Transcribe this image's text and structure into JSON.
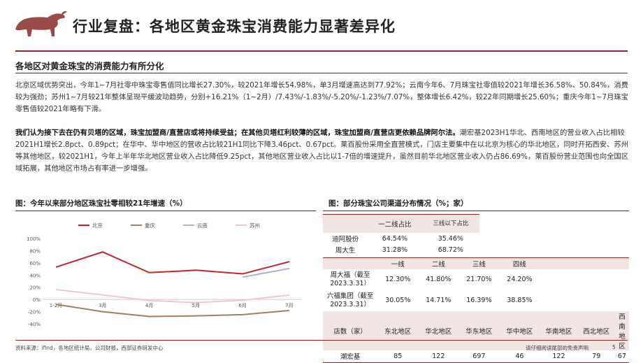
{
  "header": {
    "title": "行业复盘：各地区黄金珠宝消费能力显著差异化",
    "accent_color": "#8b2a2a"
  },
  "section": {
    "subtitle": "各地区对黄金珠宝的消费能力有所分化",
    "paragraph1": "北京区域优势突出，今年1~7月社零中珠宝零售值同比增长27.30%，较2021年增长54.98%，单3月增速高达到77.92%；云南今年6、7月珠宝社零值较2021年增长36.58%、50.84%，消费较为强劲；苏州1~7月较21年整体呈现平缓波动趋势，分别+16.21%（1~2月）/7.43%/-1.83%/-5.20%/-1.23%/7.07%，整体增长6.42%，较22年同期增长25.60%；重庆今年1~7月珠宝零售值较2021年略有下滑。",
    "paragraph2_bold": "我们认为接下去在仍有贝塔的区域，珠宝加盟商/直营店或将持续受益；在其他贝塔红利较薄的区域，珠宝加盟商/直营店更依赖品牌阿尔法。",
    "paragraph2_rest": "潮宏基2023H1华北、西南地区的营业收入占比相较2021H1增长2.8pct、0.89pct；在华中、华中地区的营收占比较21H1同比下降3.46pct、0.67pct。莱百股份采用全直营模式，门店主要集中在以北京为核心的华北地区，同时开拓西安、苏州等其他地区，较2021H1，今年上半年华北地区营业收入占比降低9.25pct，其他地区营业收入占比以1-7倍的增速提升，虽然目前华北地区营业收入仍占86.69%，莱百股份营业范围也向全国区域拓展，其他地区市场占有率进一步增强。"
  },
  "figure1": {
    "title": "图：今年以来部分地区珠宝社零相较21年增速（%）"
  },
  "figure2": {
    "title": "图：部分珠宝公司渠道分布情况（%；家）"
  },
  "chart_data": {
    "type": "line",
    "title": "今年以来部分地区珠宝社零相较21年增速（%）",
    "categories": [
      "1-2月",
      "3月",
      "4月",
      "5月",
      "6月",
      "7月"
    ],
    "ylim": [
      -40,
      100
    ],
    "yticks": [
      "-40%",
      "-20%",
      "0%",
      "20%",
      "40%",
      "60%",
      "80%",
      "100%"
    ],
    "series": [
      {
        "name": "北京",
        "color": "#c0282d",
        "values": [
          53,
          77.92,
          44,
          48,
          42,
          62
        ]
      },
      {
        "name": "重庆",
        "color": "#a08060",
        "values": [
          -8,
          -20,
          -28,
          -27,
          -25,
          -18
        ]
      },
      {
        "name": "云南",
        "color": "#a9b4c8",
        "values": [
          null,
          null,
          null,
          null,
          36.58,
          50.84
        ]
      },
      {
        "name": "苏州",
        "color": "#f0c8cc",
        "values": [
          16.21,
          7.43,
          -1.83,
          -5.2,
          -1.23,
          7.07
        ]
      }
    ]
  },
  "table1": {
    "headers": [
      "",
      "一二线占比",
      "三线以下占比"
    ],
    "rows": [
      [
        "迪阿股份",
        "64.54%",
        "35.46%"
      ],
      [
        "周大生",
        "31.28%",
        "68.72%"
      ]
    ]
  },
  "table2": {
    "headers": [
      "",
      "一线",
      "二线",
      "三线",
      "四线"
    ],
    "rows": [
      [
        "周大福（截至2023.3.31）",
        "12.30%",
        "41.80%",
        "21.70%",
        "24.20%"
      ],
      [
        "六福集团（截至2023.3.31）",
        "30.05%",
        "14.71%",
        "16.39%",
        "38.85%"
      ]
    ]
  },
  "table3": {
    "headers": [
      "店数（家）",
      "东北地区",
      "华北地区",
      "华东地区",
      "华中地区",
      "华南地区",
      "西北地区",
      "西南地区"
    ],
    "rows": [
      [
        "潮宏基",
        "85",
        "122",
        "697",
        "46",
        "122",
        "79",
        "67"
      ]
    ]
  },
  "footer": {
    "source": "资料来源：ifind，各地区统计局，公司财报，西部证券研发中心",
    "disclaimer": "请仔细阅读尾部的免责声明",
    "page": "5"
  }
}
